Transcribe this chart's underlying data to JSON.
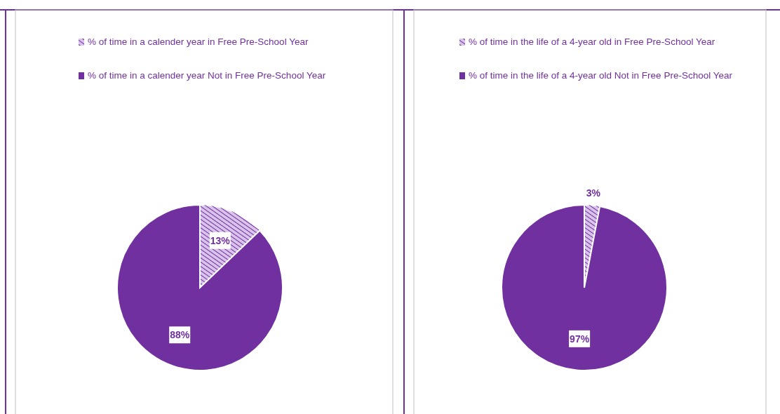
{
  "chart_data": [
    {
      "type": "pie",
      "categories": [
        "% of time in a calender year in Free Pre-School Year",
        "% of time in a calender year Not in Free Pre-School Year"
      ],
      "values": [
        13,
        88
      ],
      "value_labels": [
        "13%",
        "88%"
      ],
      "colors": [
        "#d9c3ea",
        "#7030a0"
      ],
      "legend": "top"
    },
    {
      "type": "pie",
      "categories": [
        "% of time in the life of a 4-year old in Free Pre-School Year",
        "% of time in the life of a 4-year old Not in Free Pre-School Year"
      ],
      "values": [
        3,
        97
      ],
      "value_labels": [
        "3%",
        "97%"
      ],
      "colors": [
        "#d9c3ea",
        "#7030a0"
      ],
      "legend": "top"
    }
  ]
}
